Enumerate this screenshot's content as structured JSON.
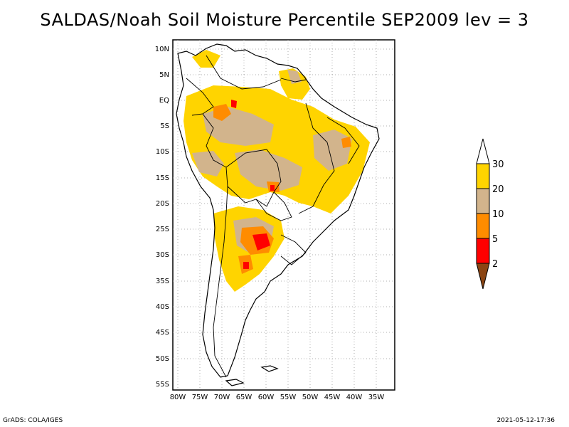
{
  "title": "SALDAS/Noah Soil Moisture Percentile SEP2009 lev = 3",
  "footer": {
    "left": "GrADS: COLA/IGES",
    "right": "2021-05-12-17:36"
  },
  "map": {
    "lat_ticks": [
      "10N",
      "5N",
      "EQ",
      "5S",
      "10S",
      "15S",
      "20S",
      "25S",
      "30S",
      "35S",
      "40S",
      "45S",
      "50S",
      "55S"
    ],
    "lon_ticks": [
      "80W",
      "75W",
      "70W",
      "65W",
      "60W",
      "55W",
      "50W",
      "45W",
      "40W",
      "35W"
    ]
  },
  "colorbar": {
    "labels": [
      "30",
      "20",
      "10",
      "5",
      "2"
    ],
    "colors": {
      "above_30": "#ffffff",
      "20_30": "#ffd400",
      "10_20": "#d2b48c",
      "5_10": "#ff8c00",
      "2_5": "#ff0000",
      "below_2": "#8b4513"
    }
  },
  "palette": {
    "yellow": "#ffd400",
    "tan": "#d2b48c",
    "orange": "#ff8c00",
    "red": "#ff0000"
  }
}
